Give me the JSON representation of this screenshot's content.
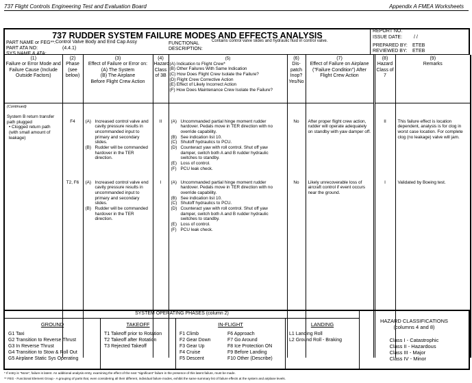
{
  "page_header": {
    "left": "737 Flight Controls Engineering Test and Evaluation Board",
    "right": "Appendix A   FMEA Worksheets"
  },
  "form": {
    "title": "737 RUDDER SYSTEM FAILURE MODES AND EFFECTS ANALYSIS",
    "part_name_label": "PART NAME or FEG**:",
    "part_name": "Control Valve Body and End Cap Assy",
    "part_ata_label": "PART ATA NO:",
    "part_ata": "(4.4.1)",
    "sys_label": "SYS NAME & ATA:",
    "func_label": "FUNCTIONAL",
    "func_label2": "DESCRIPTION:",
    "func_desc": "Contains control valve slides and hydraulic fluid in control valve.",
    "report_no_label": "REPORT NO.",
    "issue_date_label": "ISSUE DATE:",
    "issue_date": "/ /",
    "prepared_label": "PREPARED BY:",
    "prepared": "ETEB",
    "reviewed_label": "REVIEWED BY:",
    "reviewed": "ETEB"
  },
  "columns": [
    {
      "num": "(1)",
      "text": "Failure or Error Mode and Failure Cause (Include Outside Factors)"
    },
    {
      "num": "(2)",
      "text": "Phase (see below)"
    },
    {
      "num": "(3)",
      "text": "Effect of Failure or Error on:",
      "a": "(A)  The System",
      "b": "(B)  The Airplane",
      "c": "Before Flight Crew Action"
    },
    {
      "num": "(4)",
      "text": "Hazard Class of 3B"
    },
    {
      "num": "(5)",
      "items": [
        "(A)  Indication to Flight Crew*",
        "(B)  Other Failures With Same Indication",
        "(C)  How Does Flight Crew Isolate the Failure?",
        "(D)  Flight Crew Corrective Action",
        "(E)  Effect of Likely Incorrect Action",
        "(F)  How Does Maintenance Crew Isolate the Failure?"
      ]
    },
    {
      "num": "(6)",
      "text": "Dis-patch Inop? Yes/No"
    },
    {
      "num": "(7)",
      "text": "Effect of Failure on Airplane (\"Failure Condition\") After Flight Crew Action"
    },
    {
      "num": "(8)",
      "text": "Hazard Class of 7"
    },
    {
      "num": "(9)",
      "text": "Remarks"
    }
  ],
  "continued": "(Continued)",
  "failure_mode": "System B return transfer path plugged",
  "failure_bullet": "Clogged return path (with small amount of leakage)",
  "rows": [
    {
      "phase": "F4",
      "effectA": "Increased control valve and cavity pressure results in uncommanded input to primary and secondary slides.",
      "effectB": "Rudder will be commanded hardover in the TER direction.",
      "hazard": "II",
      "ind": [
        "Uncommanded partial hinge moment rudder hardover. Pedals move in TER direction with no override capability.",
        "See indication list 10.",
        "Shutoff hydraulics to PCU.",
        "Counteract yaw with roll control.  Shut off yaw damper, switch both A and B rudder hydraulic switches to standby.",
        "Loss of control.",
        "PCU leak check."
      ],
      "dispatch": "No",
      "effect7": "After proper flight crew action, rudder will operate adequately on standby with yaw damper off.",
      "hazard8": "II",
      "remarks": "This failure effect is location dependent, analysis is for clog in worst case location. For complete clog (no leakage) valve will jam."
    },
    {
      "phase": "T2, F6",
      "effectA": "Increased control valve end cavity pressure results in uncommanded input to primary and secondary slides.",
      "effectB": "Rudder will be commanded hardover in the TER direction.",
      "hazard": "I",
      "ind": [
        "Uncommanded partial hinge moment rudder hardover. Pedals move in TER direction with no override capability.",
        "See indication list 10.",
        "Shutoff hydraulics to PCU.",
        "Counteract yaw with roll control.  Shut off yaw damper, switch both A and B rudder hydraulic switches to standby.",
        "Loss of control.",
        "PCU leak check."
      ],
      "dispatch": "No",
      "effect7": "Likely unrecoverable loss of aircraft control if event occurs near the ground.",
      "hazard8": "I",
      "remarks": "Validated by Boeing test."
    }
  ],
  "letters": [
    "(A)",
    "(B)",
    "(C)",
    "(D)",
    "(E)",
    "(F)"
  ],
  "phases": {
    "title": "SYSTEM OPERATING PHASES (column 2)",
    "ground": {
      "title": "GROUND",
      "items": [
        "G1  Taxi",
        "G2  Transition to Reverse Thrust",
        "G3  In Reverse Thrust",
        "G4  Transition to Stow & Roll Out",
        "G5  Airplane Static Sys Operating"
      ]
    },
    "takeoff": {
      "title": "TAKEOFF",
      "items": [
        "T1  Takeoff prior to Rotation",
        "T2  Takeoff after Rotation",
        "T3   Rejected Takeoff"
      ]
    },
    "inflight": {
      "title": "IN-FLIGHT",
      "items": [
        "F1  Climb",
        "F2  Gear Down",
        "F3  Gear Up",
        "F4  Cruise",
        "F5  Descent"
      ],
      "items2": [
        "F6  Approach",
        "F7  Go Around",
        "F8  Ice Protection ON",
        "F9  Before Landing",
        "F10 Other (Describe)"
      ]
    },
    "landing": {
      "title": "LANDING",
      "items": [
        "L1  Landing Roll",
        "L2  Ground Roll - Braking"
      ]
    }
  },
  "hazard": {
    "title": "HAZARD CLASSIFICATIONS",
    "subtitle": "(columns 4 and 8)",
    "items": [
      "Class I   -  Catastrophic",
      "Class II  -  Hazardous",
      "Class III -  Major",
      "Class IV -  Minor"
    ]
  },
  "footnotes": [
    "*  If entry is \"None\", failure is latent.  An additional analysis entry, examining the effect of the next \"significant\" failure in the presence of this latent failure, must be made.",
    "** FEG - Functional Element Group - A grouping of parts that, even considering all their different, individual failure modes, exhibit the same summary list of failure effects at the system and airplane levels."
  ]
}
